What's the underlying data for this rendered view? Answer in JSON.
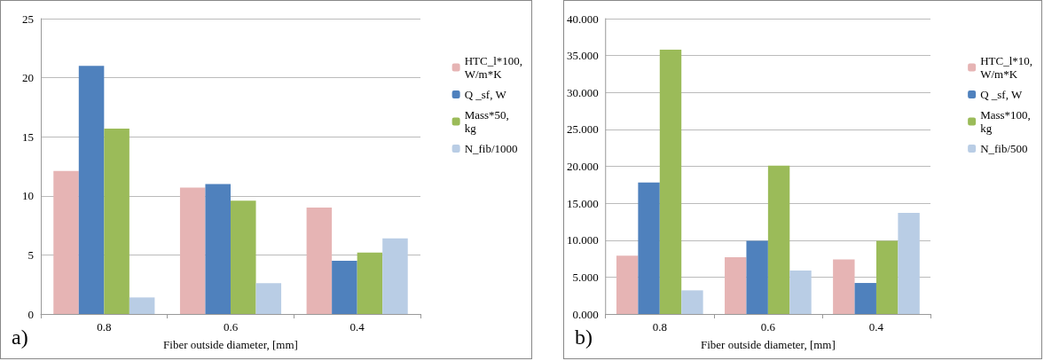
{
  "chart_data": [
    {
      "type": "bar",
      "xlabel": "Fiber outside diameter, [mm]",
      "categories": [
        "0.8",
        "0.6",
        "0.4"
      ],
      "annotations": [
        "a)"
      ],
      "ylim": [
        0,
        25
      ],
      "yticks": [
        0,
        5,
        10,
        15,
        20,
        25
      ],
      "grid": "y",
      "legend": "right",
      "series": [
        {
          "name": "HTC_l*100, W/m*K",
          "color": "#e6b4b4",
          "values": [
            12.1,
            10.7,
            9.0
          ]
        },
        {
          "name": "Q _sf, W",
          "color": "#4f81bd",
          "values": [
            21.0,
            11.0,
            4.5
          ]
        },
        {
          "name": "Mass*50, kg",
          "color": "#9bbb59",
          "values": [
            15.7,
            9.6,
            5.2
          ]
        },
        {
          "name": "N_fib/1000",
          "color": "#b9cde5",
          "values": [
            1.4,
            2.6,
            6.4
          ]
        }
      ]
    },
    {
      "type": "bar",
      "xlabel": "Fiber outside diameter, [mm]",
      "categories": [
        "0.8",
        "0.6",
        "0.4"
      ],
      "annotations": [
        "b)"
      ],
      "ylim": [
        0,
        40
      ],
      "yticks": [
        {
          "value": 0,
          "label": "0.000"
        },
        {
          "value": 5,
          "label": "5.000"
        },
        {
          "value": 10,
          "label": "10.000"
        },
        {
          "value": 15,
          "label": "15.000"
        },
        {
          "value": 20,
          "label": "20.000"
        },
        {
          "value": 25,
          "label": "25.000"
        },
        {
          "value": 30,
          "label": "30.000"
        },
        {
          "value": 35,
          "label": "35.000"
        },
        {
          "value": 40,
          "label": "40.000"
        }
      ],
      "grid": "y",
      "legend": "right",
      "series": [
        {
          "name": "HTC_l*10, W/m*K",
          "color": "#e6b4b4",
          "values": [
            7.9,
            7.7,
            7.4
          ]
        },
        {
          "name": "Q _sf, W",
          "color": "#4f81bd",
          "values": [
            17.8,
            9.9,
            4.2
          ]
        },
        {
          "name": "Mass*100, kg",
          "color": "#9bbb59",
          "values": [
            35.8,
            20.1,
            9.9
          ]
        },
        {
          "name": "N_fib/500",
          "color": "#b9cde5",
          "values": [
            3.2,
            5.9,
            13.7
          ]
        }
      ]
    }
  ]
}
